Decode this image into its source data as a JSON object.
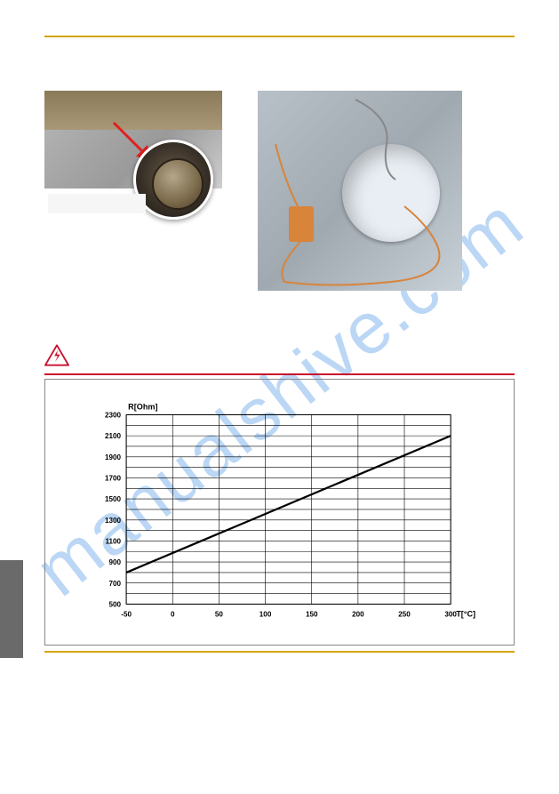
{
  "watermark": {
    "text": "manualshive.com"
  },
  "top_rule_color": "#d4a500",
  "hazard_rule_color": "#c8102e",
  "chart": {
    "type": "line",
    "y_axis_title": "R[Ohm]",
    "x_axis_title": "T[°C]",
    "title_fontsize": 9,
    "tick_fontsize": 8,
    "xlim": [
      -50,
      300
    ],
    "ylim": [
      500,
      2300
    ],
    "xtick_step": 50,
    "ytick_sub_step": 100,
    "xticks": [
      -50,
      0,
      50,
      100,
      150,
      200,
      250,
      300
    ],
    "yticks_labeled": [
      500,
      700,
      900,
      1100,
      1300,
      1500,
      1700,
      1900,
      2100,
      2300
    ],
    "x_values": [
      -50,
      300
    ],
    "y_values": [
      800,
      2100
    ],
    "line_color": "#000000",
    "line_width": 2.2,
    "grid_color": "#000000",
    "grid_width": 0.6,
    "background_color": "#ffffff",
    "border_color": "#888888"
  },
  "photos": {
    "left_bg": "#a0a0a0",
    "right_bg": "#b0b8c0",
    "arrow_color": "#e02020",
    "wire_color": "#d8843a"
  },
  "hazard_icon": {
    "border_color": "#c8102e",
    "fill": "#ffffff"
  },
  "side_tab_color": "#6a6a6a"
}
